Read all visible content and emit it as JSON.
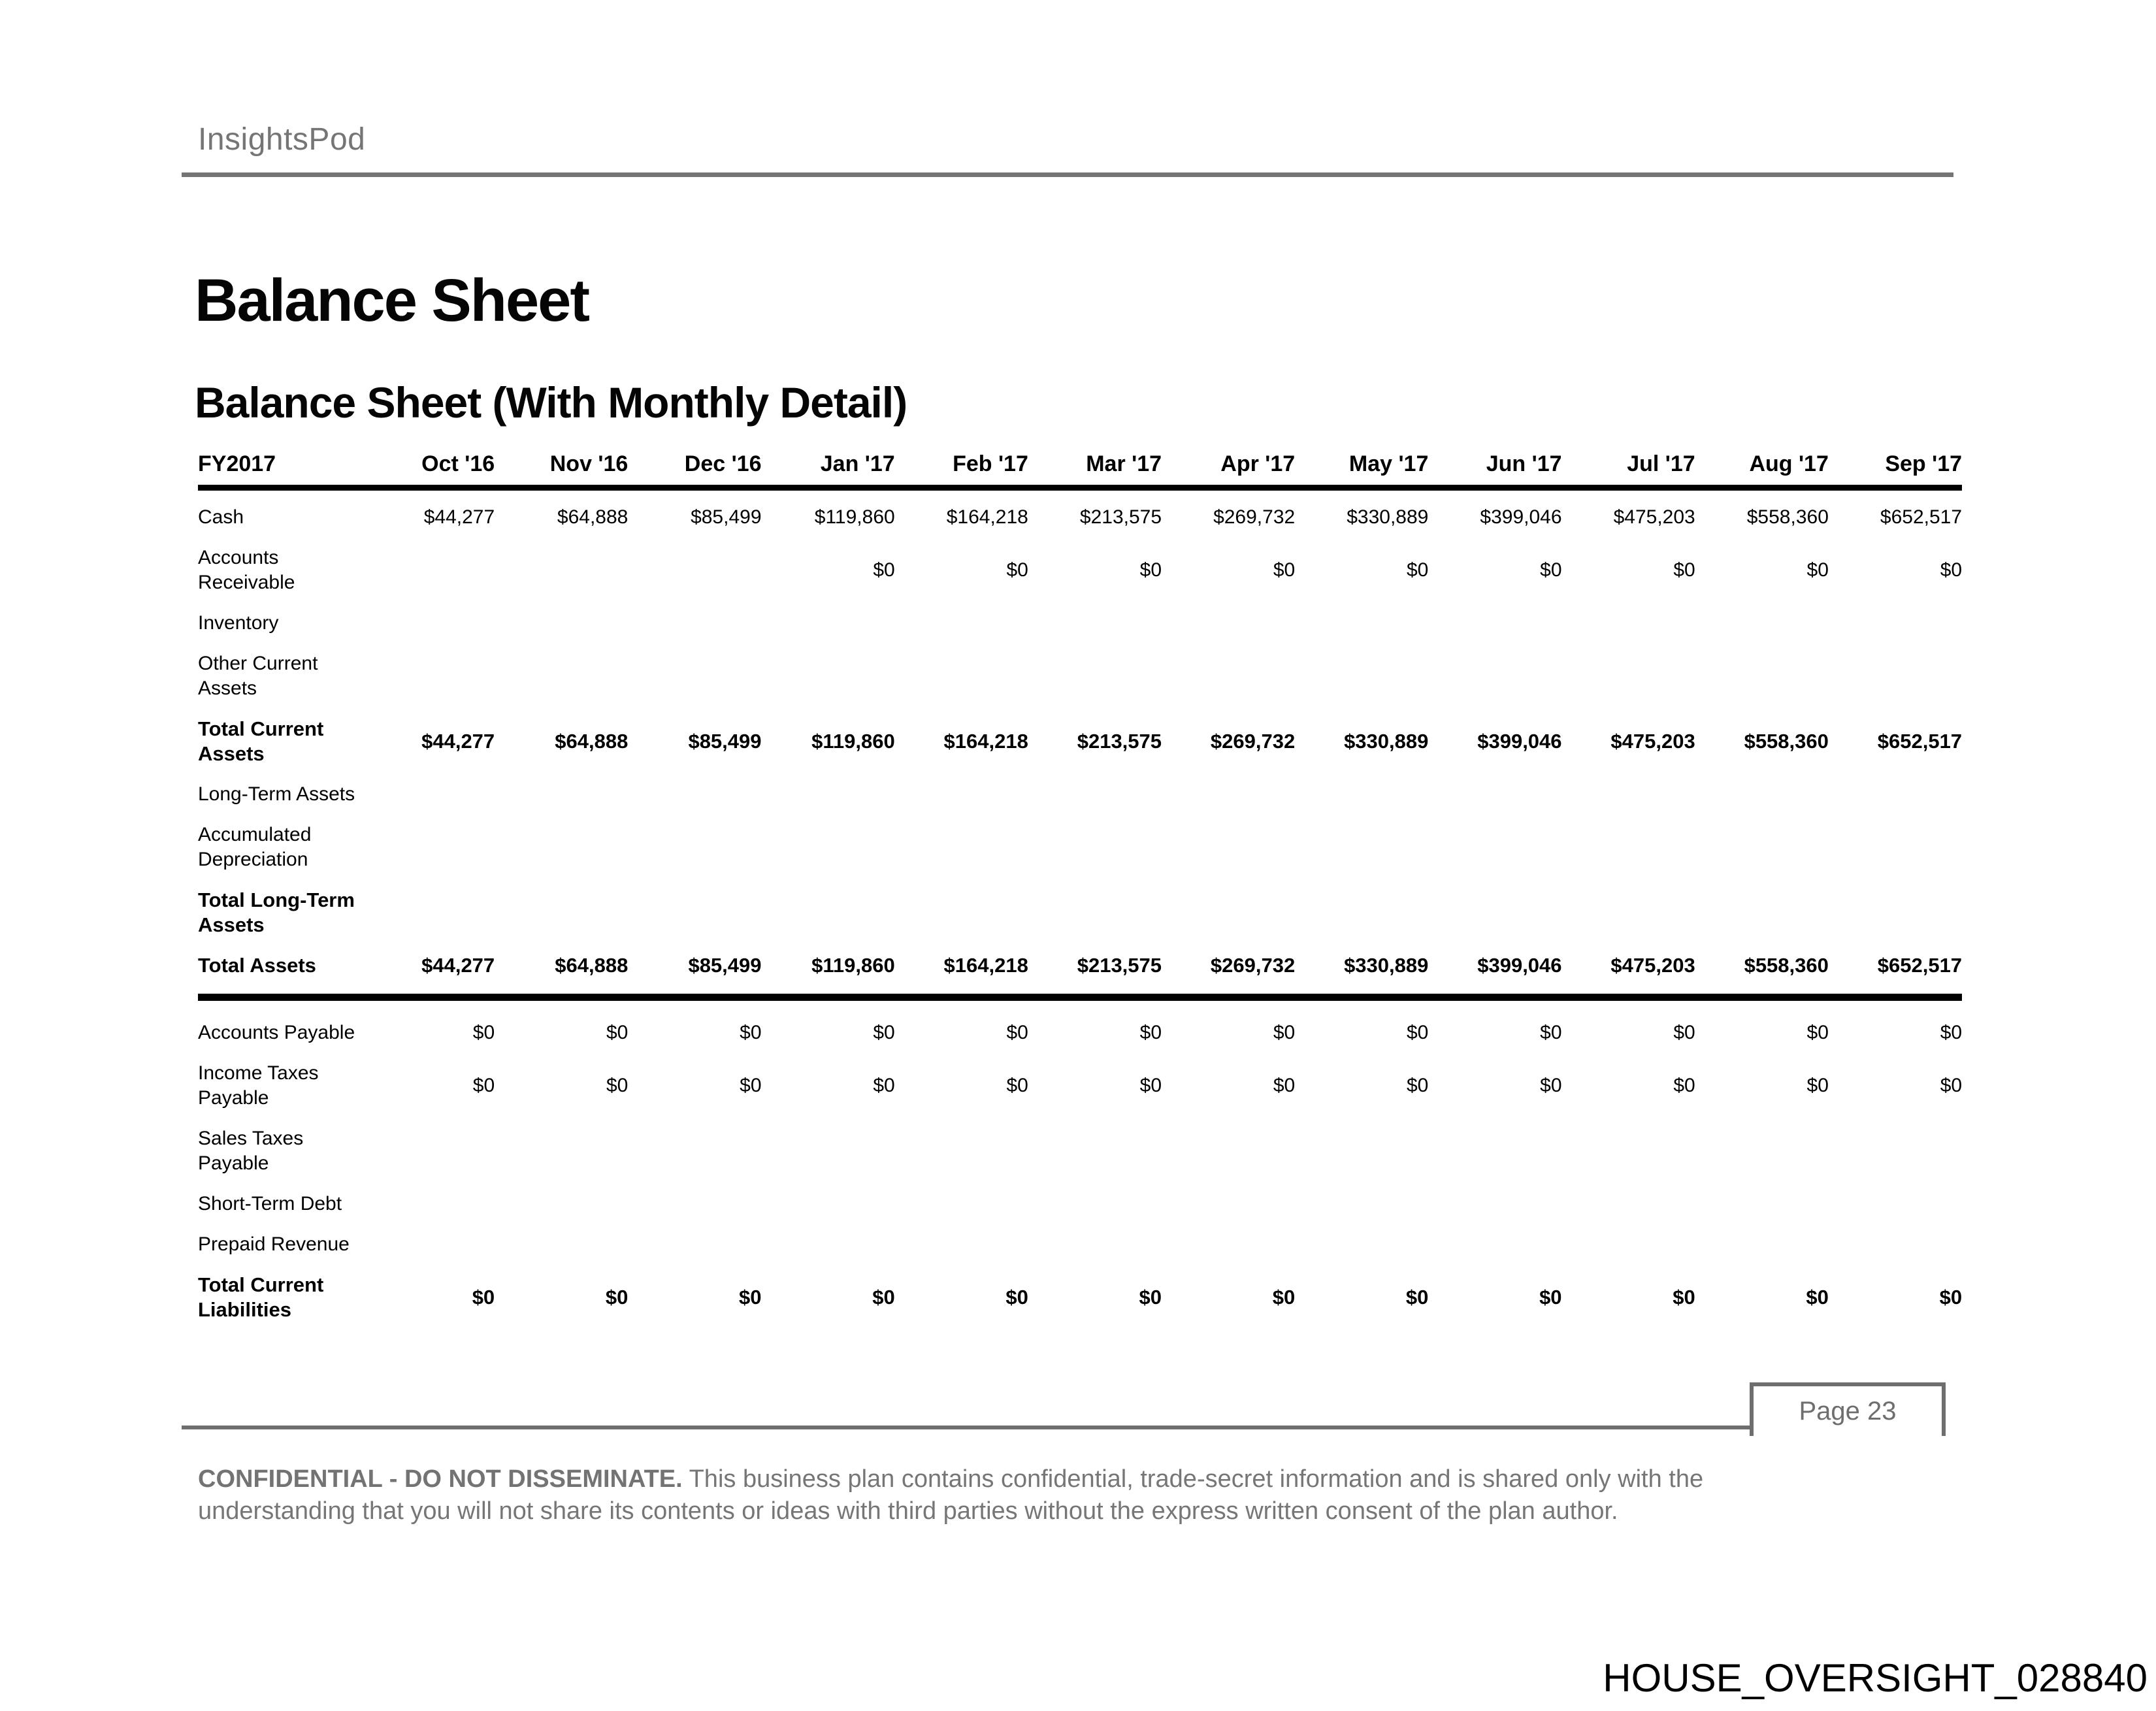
{
  "brand": "InsightsPod",
  "page_title": "Balance Sheet",
  "section_title": "Balance Sheet (With Monthly Detail)",
  "table": {
    "period_label": "FY2017",
    "months": [
      "Oct '16",
      "Nov '16",
      "Dec '16",
      "Jan '17",
      "Feb '17",
      "Mar '17",
      "Apr '17",
      "May '17",
      "Jun '17",
      "Jul '17",
      "Aug '17",
      "Sep '17"
    ],
    "rows": [
      {
        "label": "Cash",
        "bold": false,
        "values": [
          "$44,277",
          "$64,888",
          "$85,499",
          "$119,860",
          "$164,218",
          "$213,575",
          "$269,732",
          "$330,889",
          "$399,046",
          "$475,203",
          "$558,360",
          "$652,517"
        ]
      },
      {
        "label": "Accounts Receivable",
        "bold": false,
        "values": [
          "",
          "",
          "",
          "$0",
          "$0",
          "$0",
          "$0",
          "$0",
          "$0",
          "$0",
          "$0",
          "$0"
        ]
      },
      {
        "label": "Inventory",
        "bold": false,
        "values": [
          "",
          "",
          "",
          "",
          "",
          "",
          "",
          "",
          "",
          "",
          "",
          ""
        ]
      },
      {
        "label": "Other Current Assets",
        "bold": false,
        "values": [
          "",
          "",
          "",
          "",
          "",
          "",
          "",
          "",
          "",
          "",
          "",
          ""
        ]
      },
      {
        "label": "Total Current Assets",
        "bold": true,
        "values": [
          "$44,277",
          "$64,888",
          "$85,499",
          "$119,860",
          "$164,218",
          "$213,575",
          "$269,732",
          "$330,889",
          "$399,046",
          "$475,203",
          "$558,360",
          "$652,517"
        ]
      },
      {
        "label": "Long-Term Assets",
        "bold": false,
        "values": [
          "",
          "",
          "",
          "",
          "",
          "",
          "",
          "",
          "",
          "",
          "",
          ""
        ]
      },
      {
        "label": "Accumulated Depreciation",
        "bold": false,
        "values": [
          "",
          "",
          "",
          "",
          "",
          "",
          "",
          "",
          "",
          "",
          "",
          ""
        ]
      },
      {
        "label": "Total Long-Term Assets",
        "bold": true,
        "values": [
          "",
          "",
          "",
          "",
          "",
          "",
          "",
          "",
          "",
          "",
          "",
          ""
        ]
      },
      {
        "label": "Total Assets",
        "bold": true,
        "rule_below": true,
        "values": [
          "$44,277",
          "$64,888",
          "$85,499",
          "$119,860",
          "$164,218",
          "$213,575",
          "$269,732",
          "$330,889",
          "$399,046",
          "$475,203",
          "$558,360",
          "$652,517"
        ]
      },
      {
        "label": "Accounts Payable",
        "bold": false,
        "values": [
          "$0",
          "$0",
          "$0",
          "$0",
          "$0",
          "$0",
          "$0",
          "$0",
          "$0",
          "$0",
          "$0",
          "$0"
        ]
      },
      {
        "label": "Income Taxes Payable",
        "bold": false,
        "values": [
          "$0",
          "$0",
          "$0",
          "$0",
          "$0",
          "$0",
          "$0",
          "$0",
          "$0",
          "$0",
          "$0",
          "$0"
        ]
      },
      {
        "label": "Sales Taxes Payable",
        "bold": false,
        "values": [
          "",
          "",
          "",
          "",
          "",
          "",
          "",
          "",
          "",
          "",
          "",
          ""
        ]
      },
      {
        "label": "Short-Term Debt",
        "bold": false,
        "values": [
          "",
          "",
          "",
          "",
          "",
          "",
          "",
          "",
          "",
          "",
          "",
          ""
        ]
      },
      {
        "label": "Prepaid Revenue",
        "bold": false,
        "values": [
          "",
          "",
          "",
          "",
          "",
          "",
          "",
          "",
          "",
          "",
          "",
          ""
        ]
      },
      {
        "label": "Total Current Liabilities",
        "bold": true,
        "values": [
          "$0",
          "$0",
          "$0",
          "$0",
          "$0",
          "$0",
          "$0",
          "$0",
          "$0",
          "$0",
          "$0",
          "$0"
        ]
      }
    ]
  },
  "footer": {
    "page_label": "Page 23",
    "notice_strong": "CONFIDENTIAL - DO NOT DISSEMINATE.",
    "notice_text": "This business plan contains confidential, trade-secret information and is shared only with the understanding that you will not share its contents or ideas with third parties without the express written consent of the plan author.",
    "bates_stamp": "HOUSE_OVERSIGHT_028840"
  }
}
